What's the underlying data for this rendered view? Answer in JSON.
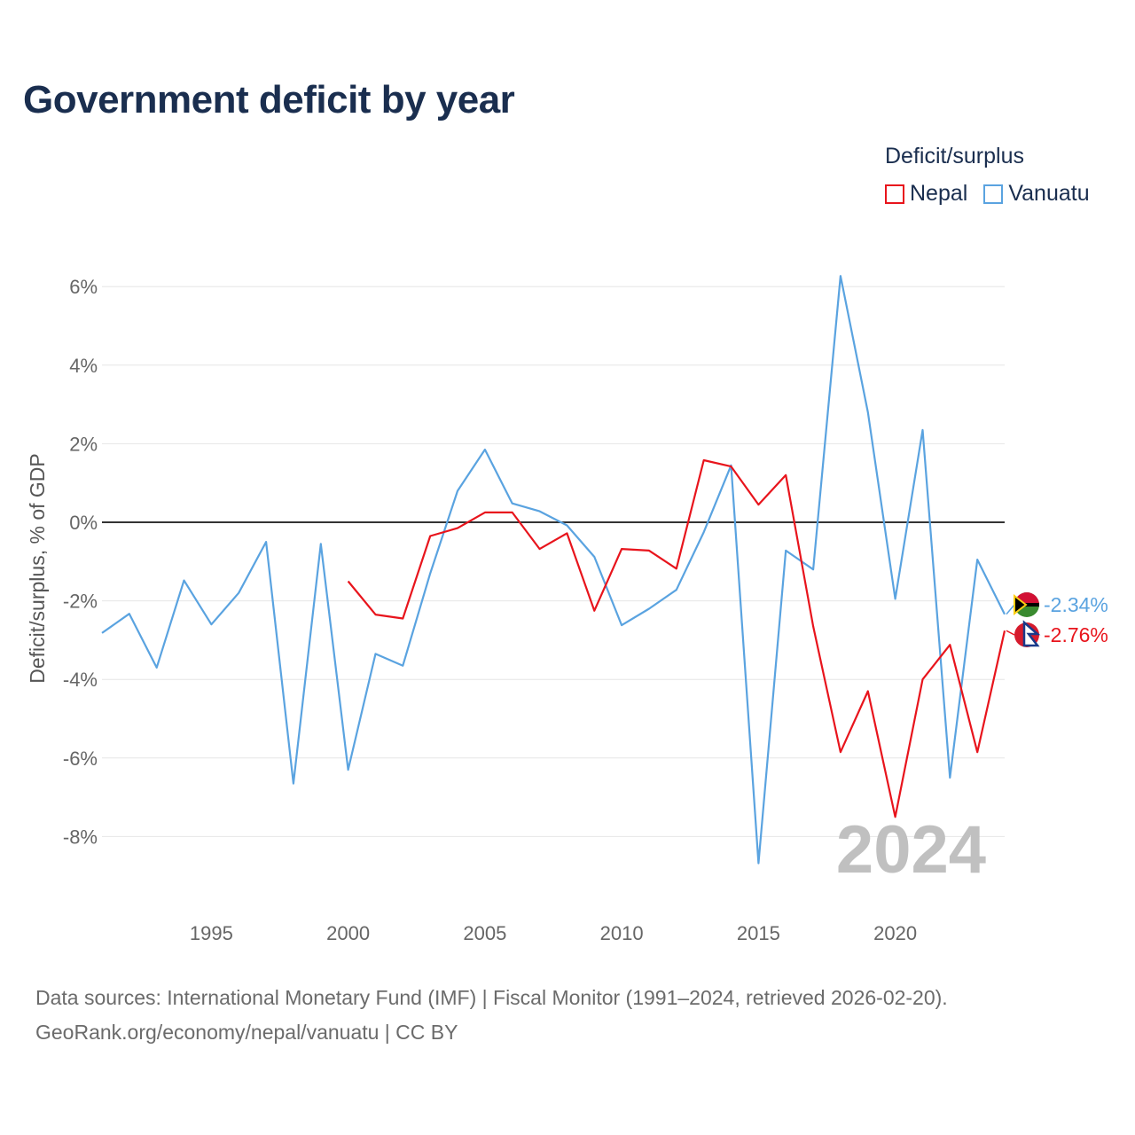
{
  "title": "Government deficit by year",
  "legend": {
    "title": "Deficit/surplus",
    "items": [
      {
        "label": "Nepal",
        "color": "#e8141c"
      },
      {
        "label": "Vanuatu",
        "color": "#5aa3e0"
      }
    ]
  },
  "footer": {
    "line1": "Data sources: International Monetary Fund (IMF) | Fiscal Monitor (1991–2024, retrieved 2026-02-20).",
    "line2": "GeoRank.org/economy/nepal/vanuatu | CC BY"
  },
  "chart_data": {
    "type": "line",
    "title": "Government deficit by year",
    "ylabel": "Deficit/surplus, % of GDP",
    "xlabel": "",
    "xlim": [
      1991,
      2024
    ],
    "ylim": [
      -9.5,
      6.5
    ],
    "yticks": [
      6,
      4,
      2,
      0,
      -2,
      -4,
      -6,
      -8
    ],
    "ytick_labels": [
      "6%",
      "4%",
      "2%",
      "0%",
      "-2%",
      "-4%",
      "-6%",
      "-8%"
    ],
    "xticks": [
      1995,
      2000,
      2005,
      2010,
      2015,
      2020
    ],
    "xtick_labels": [
      "1995",
      "2000",
      "2005",
      "2010",
      "2015",
      "2020"
    ],
    "year_watermark": "2024",
    "series": [
      {
        "name": "Nepal",
        "color": "#e8141c",
        "end_label": "-2.76%",
        "flag": "nepal-flag-icon",
        "x": [
          2000,
          2001,
          2002,
          2003,
          2004,
          2005,
          2006,
          2007,
          2008,
          2009,
          2010,
          2011,
          2012,
          2013,
          2014,
          2015,
          2016,
          2017,
          2018,
          2019,
          2020,
          2021,
          2022,
          2023,
          2024
        ],
        "values": [
          -1.5,
          -2.35,
          -2.45,
          -0.35,
          -0.15,
          0.25,
          0.25,
          -0.68,
          -0.28,
          -2.25,
          -0.68,
          -0.72,
          -1.18,
          1.58,
          1.42,
          0.45,
          1.2,
          -2.65,
          -5.85,
          -4.3,
          -7.5,
          -4.0,
          -3.12,
          -5.85,
          -2.76
        ]
      },
      {
        "name": "Vanuatu",
        "color": "#5aa3e0",
        "end_label": "-2.34%",
        "flag": "vanuatu-flag-icon",
        "x": [
          1991,
          1992,
          1993,
          1994,
          1995,
          1996,
          1997,
          1998,
          1999,
          2000,
          2001,
          2002,
          2003,
          2004,
          2005,
          2006,
          2007,
          2008,
          2009,
          2010,
          2011,
          2012,
          2013,
          2014,
          2015,
          2016,
          2017,
          2018,
          2019,
          2020,
          2021,
          2022,
          2023,
          2024
        ],
        "values": [
          -2.82,
          -2.33,
          -3.7,
          -1.48,
          -2.6,
          -1.8,
          -0.5,
          -6.65,
          -0.55,
          -6.3,
          -3.35,
          -3.65,
          -1.3,
          0.8,
          1.85,
          0.48,
          0.28,
          -0.08,
          -0.88,
          -2.62,
          -2.2,
          -1.72,
          -0.25,
          1.45,
          -8.68,
          -0.72,
          -1.2,
          6.27,
          2.8,
          -1.95,
          2.35,
          -6.5,
          -0.95,
          -2.34
        ]
      }
    ]
  }
}
